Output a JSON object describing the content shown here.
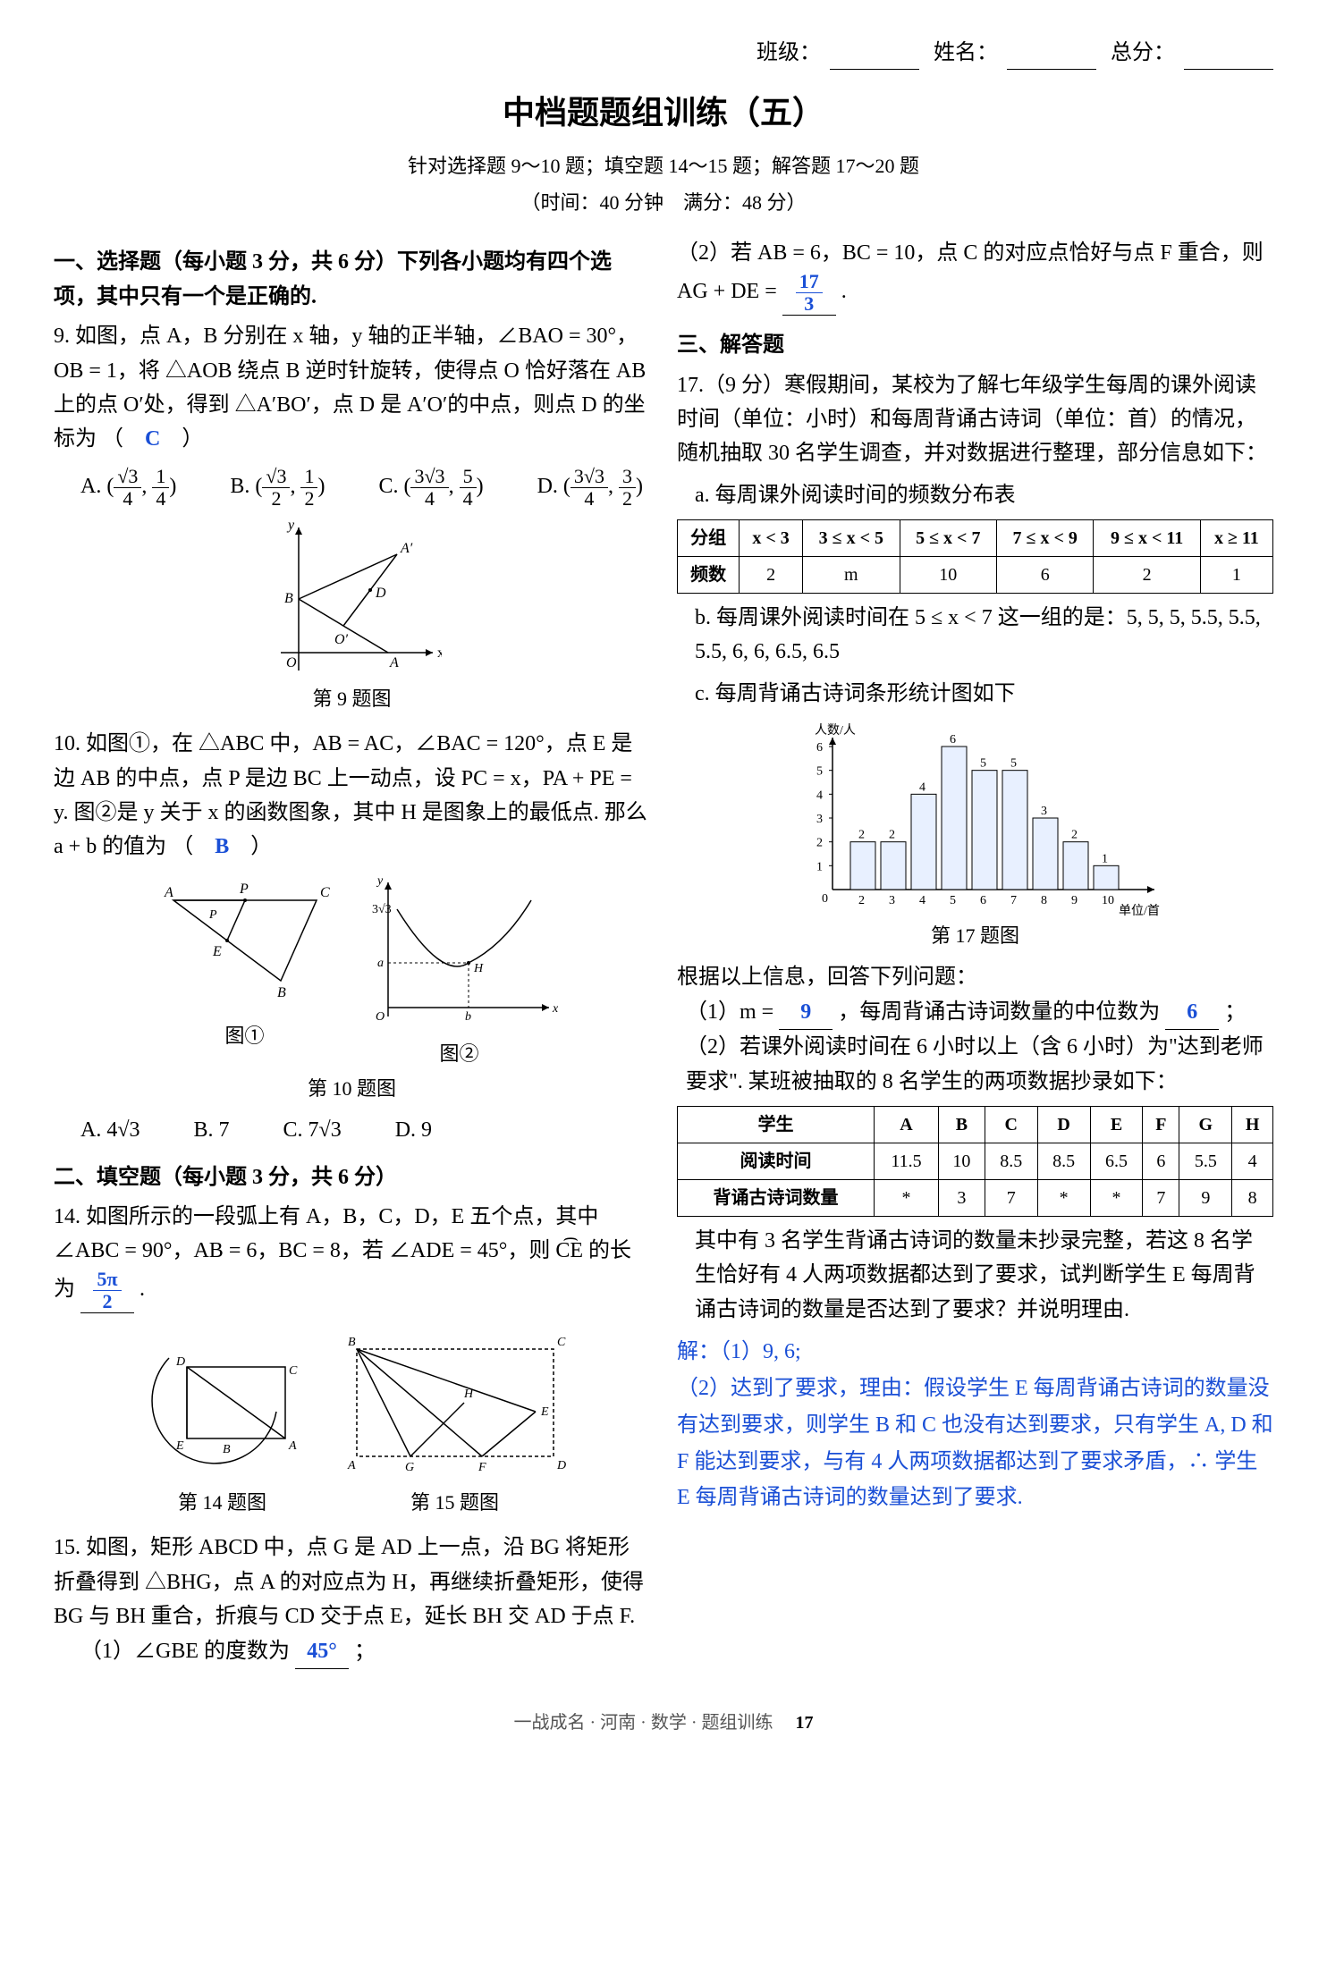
{
  "header": {
    "class_label": "班级：",
    "name_label": "姓名：",
    "score_label": "总分："
  },
  "title": "中档题题组训练（五）",
  "subtitle1": "针对选择题 9～10 题；填空题 14～15 题；解答题 17～20 题",
  "subtitle2": "（时间：40 分钟　满分：48 分）",
  "left": {
    "section1_head": "一、选择题（每小题 3 分，共 6 分）下列各小题均有四个选项，其中只有一个是正确的.",
    "q9": {
      "text": "如图，点 A，B 分别在 x 轴，y 轴的正半轴，∠BAO = 30°，OB = 1，将 △AOB 绕点 B 逆时针旋转，使得点 O 恰好落在 AB 上的点 O′处，得到 △A′BO′，点 D 是 A′O′的中点，则点 D 的坐标为",
      "answer": "C",
      "optA_pre": "A.  (",
      "optA_n1": "√3",
      "optA_d1": "4",
      "optA_n2": "1",
      "optA_d2": "4",
      "optA_post": ")",
      "optB_pre": "B.  (",
      "optB_n1": "√3",
      "optB_d1": "2",
      "optB_n2": "1",
      "optB_d2": "2",
      "optB_post": ")",
      "optC_pre": "C.  (",
      "optC_n1": "3√3",
      "optC_d1": "4",
      "optC_n2": "5",
      "optC_d2": "4",
      "optC_post": ")",
      "optD_pre": "D.  (",
      "optD_n1": "3√3",
      "optD_d1": "4",
      "optD_n2": "3",
      "optD_d2": "2",
      "optD_post": ")",
      "fig_label": "第 9 题图"
    },
    "q10": {
      "text": "如图①，在 △ABC 中，AB = AC，∠BAC = 120°，点 E 是边 AB 的中点，点 P 是边 BC 上一动点，设 PC = x，PA + PE = y. 图②是 y 关于 x 的函数图象，其中 H 是图象上的最低点. 那么 a + b 的值为",
      "answer": "B",
      "optA": "A.  4√3",
      "optB": "B.  7",
      "optC": "C.  7√3",
      "optD": "D.  9",
      "fig_label1": "图①",
      "fig_label2": "图②",
      "fig_label": "第 10 题图"
    },
    "section2_head": "二、填空题（每小题 3 分，共 6 分）",
    "q14": {
      "text_pre": "如图所示的一段弧上有 A，B，C，D，E 五个点，其中 ∠ABC = 90°，AB = 6，BC = 8，若 ∠ADE = 45°，则 C͡E 的长为",
      "ans_num": "5π",
      "ans_den": "2",
      "text_post": ".",
      "fig_label": "第 14 题图",
      "fig_label2": "第 15 题图"
    },
    "q15": {
      "text": "如图，矩形 ABCD 中，点 G 是 AD 上一点，沿 BG 将矩形折叠得到 △BHG，点 A 的对应点为 H，再继续折叠矩形，使得 BG 与 BH 重合，折痕与 CD 交于点 E，延长 BH 交 AD 于点 F.",
      "part1_pre": "（1）∠GBE 的度数为",
      "part1_ans": "45°",
      "part1_post": "；"
    }
  },
  "right": {
    "q15_part2_pre": "（2）若 AB = 6，BC = 10，点 C 的对应点恰好与点 F 重合，则 AG + DE =",
    "q15_part2_num": "17",
    "q15_part2_den": "3",
    "q15_part2_post": ".",
    "section3_head": "三、解答题",
    "q17": {
      "intro": "17.（9 分）寒假期间，某校为了解七年级学生每周的课外阅读时间（单位：小时）和每周背诵古诗词（单位：首）的情况，随机抽取 30 名学生调查，并对数据进行整理，部分信息如下：",
      "a_label": "a. 每周课外阅读时间的频数分布表",
      "b_label": "b. 每周课外阅读时间在 5 ≤ x < 7 这一组的是：5, 5, 5, 5.5, 5.5, 5.5, 6, 6, 6.5, 6.5",
      "c_label": "c. 每周背诵古诗词条形统计图如下",
      "fig_label": "第 17 题图",
      "table_a": {
        "head": [
          "分组",
          "x < 3",
          "3 ≤ x < 5",
          "5 ≤ x < 7",
          "7 ≤ x < 9",
          "9 ≤ x < 11",
          "x ≥ 11"
        ],
        "row_label": "频数",
        "row": [
          "2",
          "m",
          "10",
          "6",
          "2",
          "1"
        ]
      },
      "bar_chart": {
        "y_label": "人数/人",
        "x_label": "单位/首",
        "categories": [
          "2",
          "3",
          "4",
          "5",
          "6",
          "7",
          "8",
          "9",
          "10"
        ],
        "values": [
          2,
          2,
          4,
          6,
          5,
          5,
          3,
          2,
          1
        ],
        "bar_color": "#e8f0ff",
        "bar_border": "#000000",
        "axis_color": "#000000",
        "ymax": 6,
        "ytick_step": 1
      },
      "after": "根据以上信息，回答下列问题：",
      "p1_pre": "（1）m =",
      "p1_ans": "9",
      "p1_mid": "，每周背诵古诗词数量的中位数为",
      "p1_ans2": "6",
      "p1_post": "；",
      "p2": "（2）若课外阅读时间在 6 小时以上（含 6 小时）为\"达到老师要求\". 某班被抽取的 8 名学生的两项数据抄录如下：",
      "table_b": {
        "head": [
          "学生",
          "A",
          "B",
          "C",
          "D",
          "E",
          "F",
          "G",
          "H"
        ],
        "r1_label": "阅读时间",
        "r1": [
          "11.5",
          "10",
          "8.5",
          "8.5",
          "6.5",
          "6",
          "5.5",
          "4"
        ],
        "r2_label": "背诵古诗词数量",
        "r2": [
          "*",
          "3",
          "7",
          "*",
          "*",
          "7",
          "9",
          "8"
        ]
      },
      "p2_after": "其中有 3 名学生背诵古诗词的数量未抄录完整，若这 8 名学生恰好有 4 人两项数据都达到了要求，试判断学生 E 每周背诵古诗词的数量是否达到了要求？并说明理由.",
      "sol_label": "解：（1）9, 6;",
      "sol_text": "（2）达到了要求，理由：假设学生 E 每周背诵古诗词的数量没有达到要求，则学生 B 和 C 也没有达到要求，只有学生 A, D 和 F 能达到要求，与有 4 人两项数据都达到了要求矛盾，∴ 学生 E 每周背诵古诗词的数量达到了要求."
    }
  },
  "footer": {
    "text": "一战成名 · 河南 · 数学 · 题组训练",
    "page": "17"
  }
}
